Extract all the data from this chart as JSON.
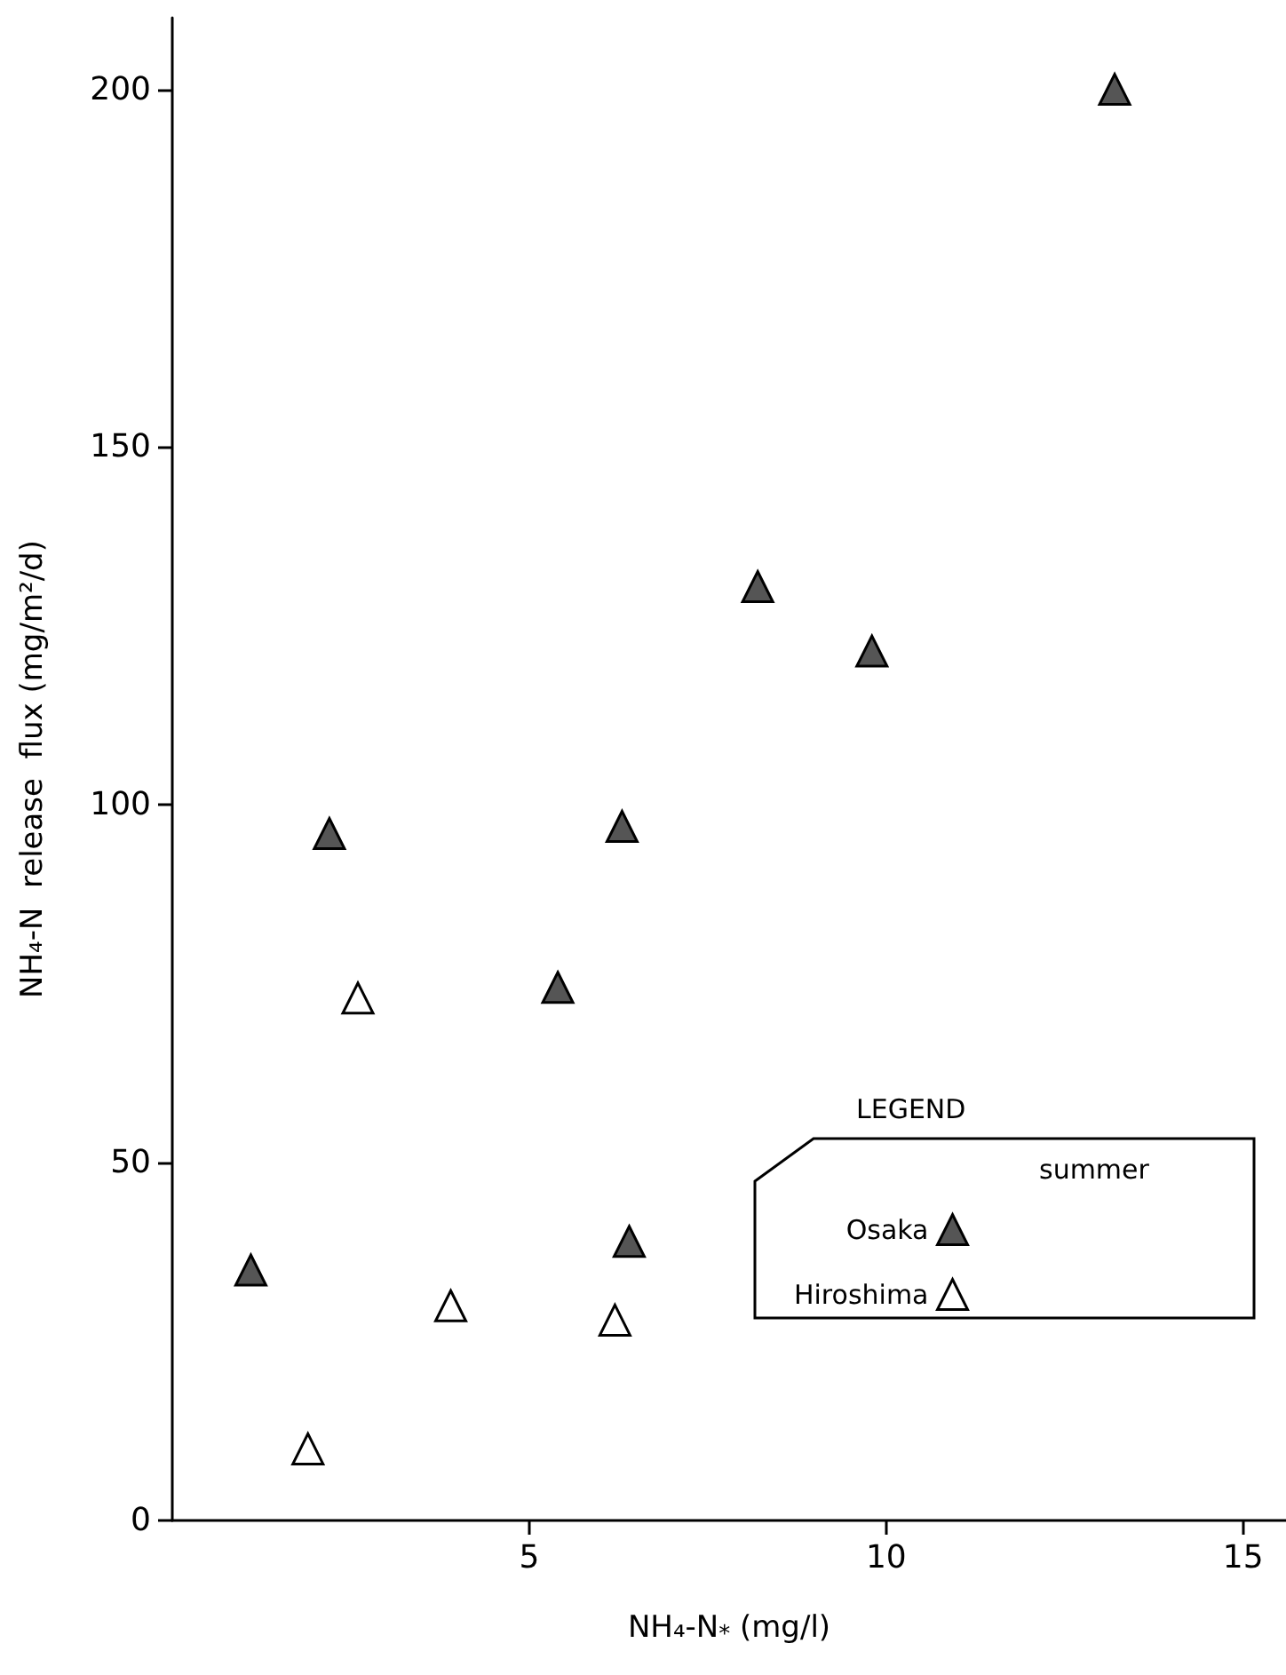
{
  "chart_data": {
    "type": "scatter",
    "xlabel": "NH₄-N$_{*}$ (mg/l)",
    "ylabel": "NH₄-N  release  flux (mg/m²/d)",
    "legend_title": "LEGEND",
    "annotations": [
      "summer"
    ],
    "xlim": [
      0,
      15.6
    ],
    "ylim": [
      0,
      210
    ],
    "xticks": [
      5,
      10,
      15
    ],
    "yticks": [
      0,
      50,
      100,
      150,
      200
    ],
    "grid": false,
    "legend": "bottom right",
    "marker": "triangle",
    "series": [
      {
        "name": "Osaka",
        "color": "#555555",
        "x": [
          1.1,
          2.2,
          5.4,
          6.3,
          6.4,
          8.2,
          9.8,
          13.2
        ],
        "values": [
          35,
          96,
          74.5,
          97,
          39,
          130.5,
          121.5,
          200
        ]
      },
      {
        "name": "Hiroshima",
        "color": "#ffffff",
        "x": [
          1.9,
          2.6,
          3.9,
          6.2
        ],
        "values": [
          10,
          73,
          30,
          28
        ]
      }
    ]
  }
}
